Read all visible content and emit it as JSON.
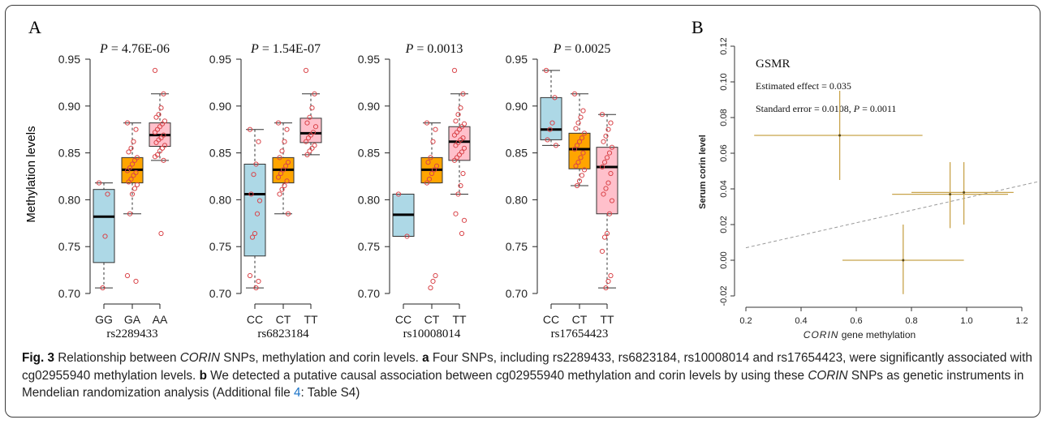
{
  "panel_a_label": "A",
  "panel_b_label": "B",
  "y_axis_label": "Methylation levels",
  "chart_data": [
    {
      "type": "box",
      "panel": "A",
      "title": "P = 4.76E-06",
      "p_prefix": "P",
      "p_value": "= 4.76E-06",
      "xlabel": "rs2289433",
      "ylabel": "Methylation levels",
      "ylim": [
        0.7,
        0.95
      ],
      "yticks": [
        "0.95",
        "0.90",
        "0.85",
        "0.80",
        "0.75",
        "0.70"
      ],
      "categories": [
        "GG",
        "GA",
        "AA"
      ],
      "colors": [
        "#add8e6",
        "#ffa500",
        "#ffc0cb"
      ],
      "boxes": [
        {
          "min": 0.706,
          "q1": 0.733,
          "median": 0.782,
          "q3": 0.811,
          "max": 0.818
        },
        {
          "min": 0.785,
          "q1": 0.818,
          "median": 0.832,
          "q3": 0.845,
          "max": 0.882
        },
        {
          "min": 0.842,
          "q1": 0.857,
          "median": 0.869,
          "q3": 0.882,
          "max": 0.913
        }
      ],
      "points": [
        [
          0.818,
          0.806,
          0.761,
          0.706
        ],
        [
          0.882,
          0.875,
          0.862,
          0.855,
          0.851,
          0.845,
          0.842,
          0.838,
          0.834,
          0.831,
          0.829,
          0.826,
          0.822,
          0.819,
          0.816,
          0.812,
          0.806,
          0.785,
          0.719,
          0.713
        ],
        [
          0.938,
          0.913,
          0.898,
          0.891,
          0.888,
          0.884,
          0.881,
          0.878,
          0.875,
          0.872,
          0.869,
          0.866,
          0.864,
          0.861,
          0.858,
          0.855,
          0.852,
          0.848,
          0.846,
          0.842,
          0.764
        ]
      ]
    },
    {
      "type": "box",
      "panel": "A",
      "title": "P = 1.54E-07",
      "p_prefix": "P",
      "p_value": "= 1.54E-07",
      "xlabel": "rs6823184",
      "ylabel": "",
      "ylim": [
        0.7,
        0.95
      ],
      "yticks": [
        "0.95",
        "0.90",
        "0.85",
        "0.80",
        "0.75",
        "0.70"
      ],
      "categories": [
        "CC",
        "CT",
        "TT"
      ],
      "colors": [
        "#add8e6",
        "#ffa500",
        "#ffc0cb"
      ],
      "boxes": [
        {
          "min": 0.706,
          "q1": 0.74,
          "median": 0.806,
          "q3": 0.838,
          "max": 0.875
        },
        {
          "min": 0.785,
          "q1": 0.818,
          "median": 0.832,
          "q3": 0.845,
          "max": 0.882
        },
        {
          "min": 0.848,
          "q1": 0.861,
          "median": 0.871,
          "q3": 0.887,
          "max": 0.913
        }
      ],
      "points": [
        [
          0.875,
          0.862,
          0.838,
          0.827,
          0.806,
          0.799,
          0.785,
          0.764,
          0.76,
          0.719,
          0.713,
          0.706
        ],
        [
          0.882,
          0.875,
          0.862,
          0.852,
          0.845,
          0.84,
          0.836,
          0.832,
          0.828,
          0.824,
          0.82,
          0.815,
          0.811,
          0.806,
          0.785
        ],
        [
          0.938,
          0.913,
          0.898,
          0.888,
          0.882,
          0.878,
          0.872,
          0.869,
          0.866,
          0.862,
          0.858,
          0.855,
          0.852,
          0.848
        ]
      ]
    },
    {
      "type": "box",
      "panel": "A",
      "title": "P = 0.0013",
      "p_prefix": "P",
      "p_value": "= 0.0013",
      "xlabel": "rs10008014",
      "ylabel": "",
      "ylim": [
        0.7,
        0.95
      ],
      "yticks": [
        "0.95",
        "0.90",
        "0.85",
        "0.80",
        "0.75",
        "0.70"
      ],
      "categories": [
        "CC",
        "CT",
        "TT"
      ],
      "colors": [
        "#add8e6",
        "#ffa500",
        "#ffc0cb"
      ],
      "boxes": [
        {
          "min": 0.761,
          "q1": 0.761,
          "median": 0.784,
          "q3": 0.806,
          "max": 0.806
        },
        {
          "min": 0.818,
          "q1": 0.818,
          "median": 0.832,
          "q3": 0.845,
          "max": 0.882
        },
        {
          "min": 0.806,
          "q1": 0.842,
          "median": 0.862,
          "q3": 0.878,
          "max": 0.913
        }
      ],
      "points": [
        [
          0.806,
          0.761
        ],
        [
          0.882,
          0.875,
          0.862,
          0.845,
          0.84,
          0.836,
          0.832,
          0.828,
          0.822,
          0.818,
          0.719,
          0.713,
          0.706
        ],
        [
          0.938,
          0.913,
          0.898,
          0.891,
          0.884,
          0.881,
          0.878,
          0.875,
          0.872,
          0.869,
          0.866,
          0.864,
          0.861,
          0.858,
          0.855,
          0.851,
          0.848,
          0.845,
          0.842,
          0.828,
          0.815,
          0.806,
          0.785,
          0.778,
          0.764
        ]
      ]
    },
    {
      "type": "box",
      "panel": "A",
      "title": "P = 0.0025",
      "p_prefix": "P",
      "p_value": "= 0.0025",
      "xlabel": "rs17654423",
      "ylabel": "",
      "ylim": [
        0.7,
        0.95
      ],
      "yticks": [
        "0.95",
        "0.90",
        "0.85",
        "0.80",
        "0.75",
        "0.70"
      ],
      "categories": [
        "CC",
        "CT",
        "TT"
      ],
      "colors": [
        "#add8e6",
        "#ffa500",
        "#ffc0cb"
      ],
      "boxes": [
        {
          "min": 0.858,
          "q1": 0.864,
          "median": 0.875,
          "q3": 0.909,
          "max": 0.938
        },
        {
          "min": 0.815,
          "q1": 0.833,
          "median": 0.854,
          "q3": 0.871,
          "max": 0.913
        },
        {
          "min": 0.706,
          "q1": 0.785,
          "median": 0.835,
          "q3": 0.856,
          "max": 0.891
        }
      ],
      "points": [
        [
          0.938,
          0.909,
          0.882,
          0.875,
          0.864,
          0.858
        ],
        [
          0.913,
          0.895,
          0.888,
          0.882,
          0.876,
          0.871,
          0.866,
          0.862,
          0.858,
          0.854,
          0.85,
          0.845,
          0.84,
          0.836,
          0.832,
          0.826,
          0.82,
          0.815
        ],
        [
          0.891,
          0.882,
          0.875,
          0.868,
          0.862,
          0.856,
          0.85,
          0.845,
          0.84,
          0.835,
          0.828,
          0.818,
          0.812,
          0.806,
          0.799,
          0.785,
          0.764,
          0.76,
          0.745,
          0.719,
          0.713,
          0.706
        ]
      ]
    },
    {
      "type": "scatter",
      "panel": "B",
      "title": "GSMR",
      "annotation_1": "Estimated effect = 0.035",
      "annotation_2_prefix": "Standard error = 0.0108, ",
      "annotation_2_p": "P",
      "annotation_2_suffix": " = 0.0011",
      "xlabel_gene": "CORIN",
      "xlabel_rest": " gene methylation",
      "ylabel": "Serum corin level",
      "xlim": [
        0.2,
        1.2
      ],
      "ylim": [
        -0.02,
        0.12
      ],
      "xticks": [
        "0.2",
        "0.4",
        "0.6",
        "0.8",
        "1.0",
        "1.2"
      ],
      "yticks": [
        "-0.02",
        "0.00",
        "0.02",
        "0.04",
        "0.06",
        "0.08",
        "0.10",
        "0.12"
      ],
      "points": [
        {
          "x": 0.54,
          "y": 0.07,
          "xmin": 0.23,
          "xmax": 0.84,
          "ymin": 0.045,
          "ymax": 0.095
        },
        {
          "x": 0.94,
          "y": 0.037,
          "xmin": 0.73,
          "xmax": 1.15,
          "ymin": 0.018,
          "ymax": 0.055
        },
        {
          "x": 0.99,
          "y": 0.038,
          "xmin": 0.8,
          "xmax": 1.17,
          "ymin": 0.02,
          "ymax": 0.055
        },
        {
          "x": 0.77,
          "y": 0.0,
          "xmin": 0.55,
          "xmax": 0.99,
          "ymin": -0.019,
          "ymax": 0.02
        }
      ],
      "fit_line": {
        "intercept": 0.0,
        "slope": 0.035
      },
      "point_color": "#c8a34b",
      "line_color": "#999999"
    }
  ],
  "caption": {
    "fig_label": "Fig. 3",
    "part1": " Relationship between ",
    "gene1": "CORIN",
    "part2": " SNPs, methylation and corin levels. ",
    "label_a": "a",
    "part3": " Four SNPs, including rs2289433, rs6823184, rs10008014 and rs17654423, were significantly associated with cg02955940 methylation levels. ",
    "label_b": "b",
    "part4": " We detected a putative causal association between cg02955940 methylation and corin levels by using these ",
    "gene2": "CORIN",
    "part5": " SNPs as genetic instruments in Mendelian randomization analysis (Additional file ",
    "file_link": "4",
    "part6": ": Table S4)"
  }
}
